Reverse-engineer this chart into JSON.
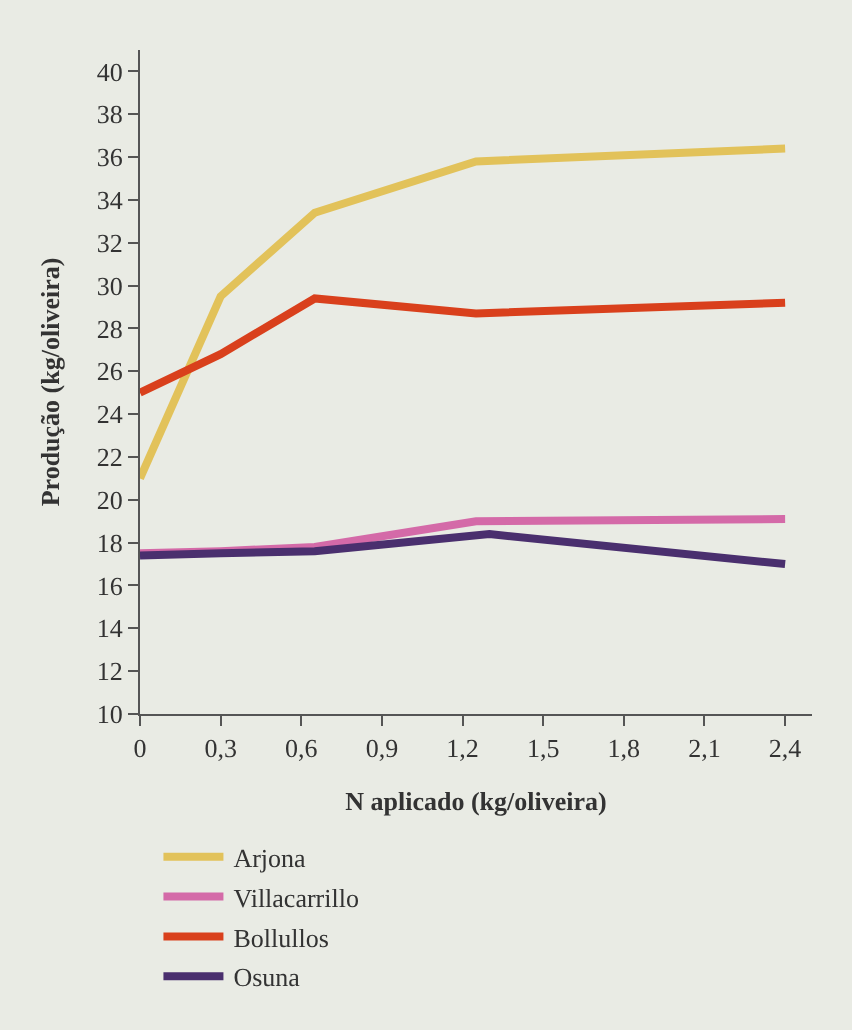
{
  "chart_data": {
    "type": "line",
    "xlabel": "N aplicado (kg/oliveira)",
    "ylabel": "Produção (kg/oliveira)",
    "xlim": [
      0,
      2.5
    ],
    "xticks": [
      {
        "value": 0,
        "label": "0"
      },
      {
        "value": 0.3,
        "label": "0,3"
      },
      {
        "value": 0.6,
        "label": "0,6"
      },
      {
        "value": 0.9,
        "label": "0,9"
      },
      {
        "value": 1.2,
        "label": "1,2"
      },
      {
        "value": 1.5,
        "label": "1,5"
      },
      {
        "value": 1.8,
        "label": "1,8"
      },
      {
        "value": 2.1,
        "label": "2,1"
      },
      {
        "value": 2.4,
        "label": "2,4"
      }
    ],
    "ylim": [
      10,
      41
    ],
    "yticks": [
      10,
      12,
      14,
      16,
      18,
      20,
      22,
      24,
      26,
      28,
      30,
      32,
      34,
      36,
      38,
      40
    ],
    "x": [
      0,
      0.3,
      0.65,
      1.25,
      2.4
    ],
    "series": [
      {
        "name": "Arjona",
        "color": "#e2c25a",
        "values": [
          21,
          29.5,
          33.4,
          35.8,
          36.4
        ]
      },
      {
        "name": "Bollullos",
        "color": "#d9401c",
        "values": [
          25,
          26.8,
          29.4,
          28.7,
          29.2
        ]
      },
      {
        "name": "Villacarrillo",
        "color": "#d46aa8",
        "values": [
          17.5,
          17.6,
          17.8,
          19,
          19.1
        ]
      },
      {
        "name": "Osuna",
        "color": "#4a2f6e",
        "x": [
          0,
          0.3,
          0.65,
          1.3,
          2.4
        ],
        "values": [
          17.4,
          17.5,
          17.6,
          18.4,
          17
        ]
      }
    ],
    "grid": false,
    "legend": "bottom",
    "marker": "none",
    "line_style": "solid"
  }
}
